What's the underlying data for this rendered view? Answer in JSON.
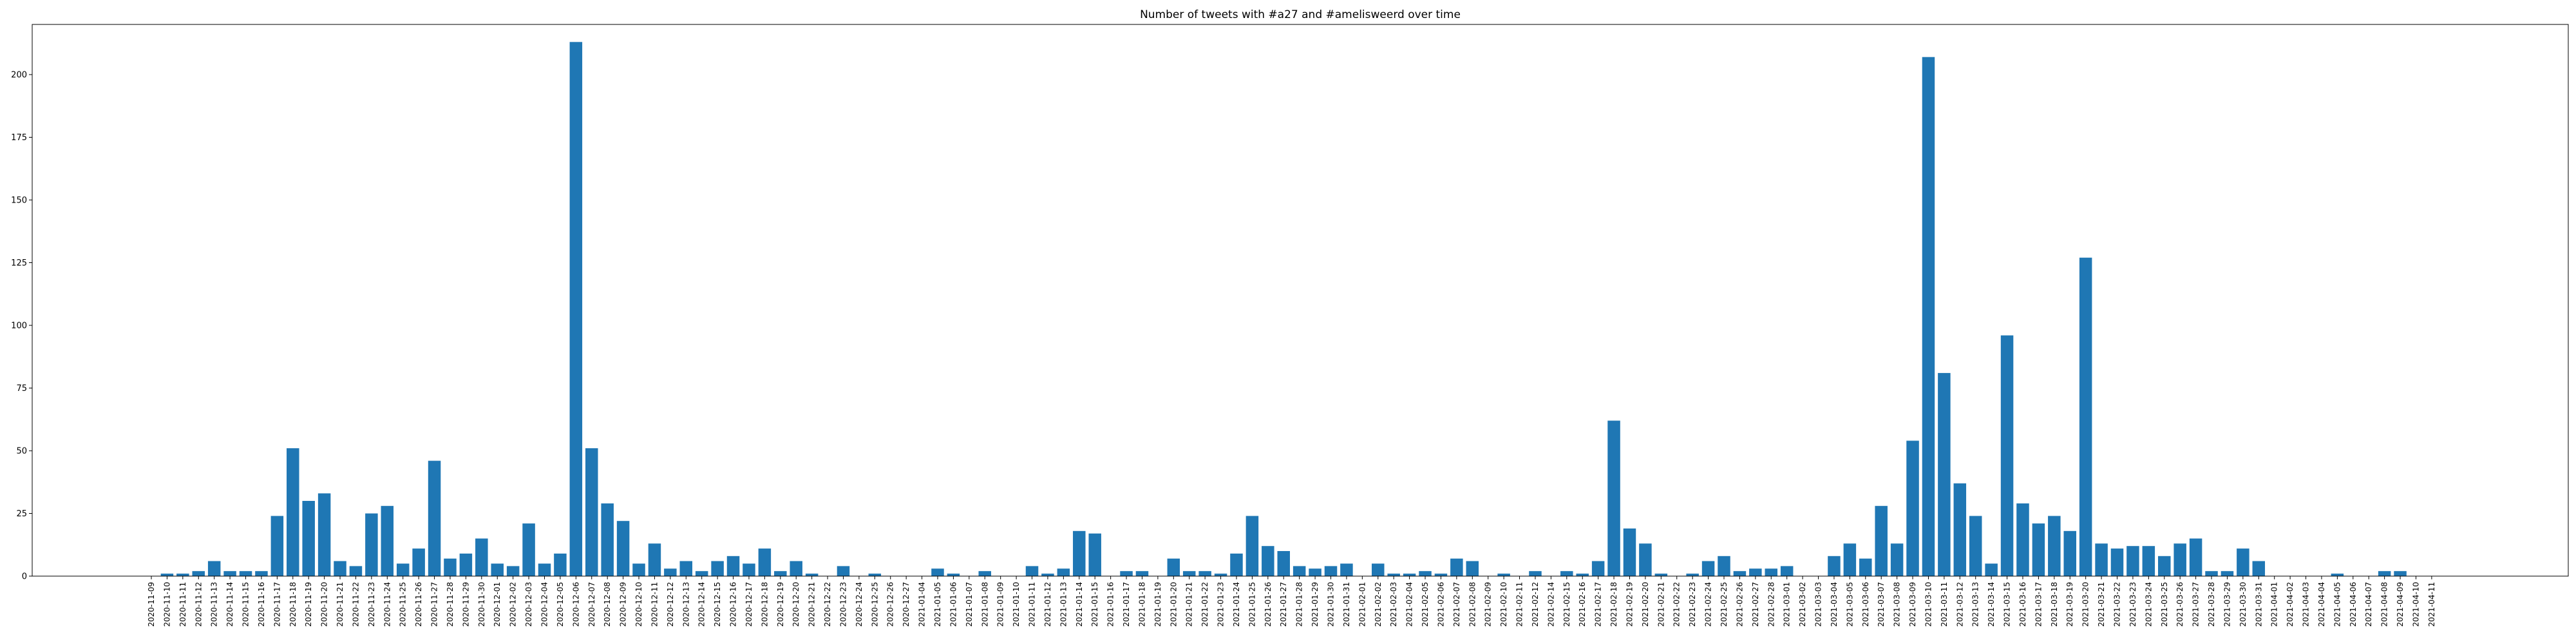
{
  "chart_data": {
    "type": "bar",
    "title": "Number of tweets with #a27 and #amelisweerd over time",
    "xlabel": "",
    "ylabel": "",
    "ylim": [
      0,
      220
    ],
    "yticks": [
      0,
      25,
      50,
      75,
      100,
      125,
      150,
      175,
      200
    ],
    "grid": false,
    "bar_color": "#1f77b4",
    "categories": [
      "2020-11-09",
      "2020-11-10",
      "2020-11-11",
      "2020-11-12",
      "2020-11-13",
      "2020-11-14",
      "2020-11-15",
      "2020-11-16",
      "2020-11-17",
      "2020-11-18",
      "2020-11-19",
      "2020-11-20",
      "2020-11-21",
      "2020-11-22",
      "2020-11-23",
      "2020-11-24",
      "2020-11-25",
      "2020-11-26",
      "2020-11-27",
      "2020-11-28",
      "2020-11-29",
      "2020-11-30",
      "2020-12-01",
      "2020-12-02",
      "2020-12-03",
      "2020-12-04",
      "2020-12-05",
      "2020-12-06",
      "2020-12-07",
      "2020-12-08",
      "2020-12-09",
      "2020-12-10",
      "2020-12-11",
      "2020-12-12",
      "2020-12-13",
      "2020-12-14",
      "2020-12-15",
      "2020-12-16",
      "2020-12-17",
      "2020-12-18",
      "2020-12-19",
      "2020-12-20",
      "2020-12-21",
      "2020-12-22",
      "2020-12-23",
      "2020-12-24",
      "2020-12-25",
      "2020-12-26",
      "2020-12-27",
      "2021-01-04",
      "2021-01-05",
      "2021-01-06",
      "2021-01-07",
      "2021-01-08",
      "2021-01-09",
      "2021-01-10",
      "2021-01-11",
      "2021-01-12",
      "2021-01-13",
      "2021-01-14",
      "2021-01-15",
      "2021-01-16",
      "2021-01-17",
      "2021-01-18",
      "2021-01-19",
      "2021-01-20",
      "2021-01-21",
      "2021-01-22",
      "2021-01-23",
      "2021-01-24",
      "2021-01-25",
      "2021-01-26",
      "2021-01-27",
      "2021-01-28",
      "2021-01-29",
      "2021-01-30",
      "2021-01-31",
      "2021-02-01",
      "2021-02-02",
      "2021-02-03",
      "2021-02-04",
      "2021-02-05",
      "2021-02-06",
      "2021-02-07",
      "2021-02-08",
      "2021-02-09",
      "2021-02-10",
      "2021-02-11",
      "2021-02-12",
      "2021-02-14",
      "2021-02-15",
      "2021-02-16",
      "2021-02-17",
      "2021-02-18",
      "2021-02-19",
      "2021-02-20",
      "2021-02-21",
      "2021-02-22",
      "2021-02-23",
      "2021-02-24",
      "2021-02-25",
      "2021-02-26",
      "2021-02-27",
      "2021-02-28",
      "2021-03-01",
      "2021-03-02",
      "2021-03-03",
      "2021-03-04",
      "2021-03-05",
      "2021-03-06",
      "2021-03-07",
      "2021-03-08",
      "2021-03-09",
      "2021-03-10",
      "2021-03-11",
      "2021-03-12",
      "2021-03-13",
      "2021-03-14",
      "2021-03-15",
      "2021-03-16",
      "2021-03-17",
      "2021-03-18",
      "2021-03-19",
      "2021-03-20",
      "2021-03-21",
      "2021-03-22",
      "2021-03-23",
      "2021-03-24",
      "2021-03-25",
      "2021-03-26",
      "2021-03-27",
      "2021-03-28",
      "2021-03-29",
      "2021-03-30",
      "2021-03-31",
      "2021-04-01",
      "2021-04-02",
      "2021-04-03",
      "2021-04-04",
      "2021-04-05",
      "2021-04-06",
      "2021-04-07",
      "2021-04-08",
      "2021-04-09",
      "2021-04-10",
      "2021-04-11"
    ],
    "values": [
      0,
      1,
      1,
      2,
      6,
      2,
      2,
      2,
      24,
      51,
      30,
      33,
      6,
      4,
      25,
      28,
      5,
      11,
      46,
      7,
      9,
      15,
      5,
      4,
      21,
      5,
      9,
      213,
      51,
      29,
      22,
      5,
      13,
      3,
      6,
      2,
      6,
      8,
      5,
      11,
      2,
      6,
      1,
      0,
      4,
      0,
      1,
      0,
      0,
      0,
      3,
      1,
      0,
      2,
      0,
      0,
      4,
      1,
      3,
      18,
      17,
      0,
      2,
      2,
      0,
      7,
      2,
      2,
      1,
      9,
      24,
      12,
      10,
      4,
      3,
      4,
      5,
      0,
      5,
      1,
      1,
      2,
      1,
      7,
      6,
      0,
      1,
      0,
      2,
      0,
      2,
      1,
      6,
      62,
      19,
      13,
      1,
      0,
      1,
      6,
      8,
      2,
      3,
      3,
      4,
      0,
      0,
      8,
      13,
      7,
      28,
      13,
      54,
      207,
      81,
      37,
      24,
      5,
      96,
      29,
      21,
      24,
      18,
      127,
      13,
      11,
      12,
      12,
      8,
      13,
      15,
      2,
      2,
      11,
      6,
      0,
      0,
      0,
      0,
      1,
      0,
      0,
      2,
      2,
      0,
      0
    ]
  }
}
